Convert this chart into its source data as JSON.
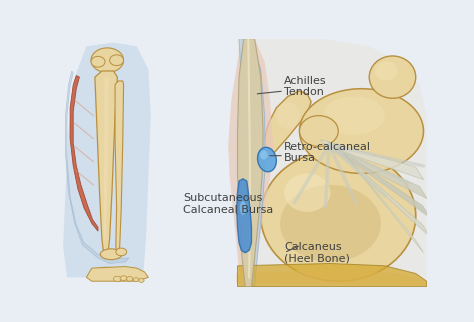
{
  "bg_color": "#e8eef4",
  "labels": {
    "achilles": "Achilles\nTendon",
    "retro": "Retro-calcaneal\nBursa",
    "subcut": "Subcutaneous\nCalcaneal Bursa",
    "calcaneus": "Calcaneus\n(Heel Bone)"
  },
  "bone_color": "#e8d5a0",
  "bone_color2": "#ddc890",
  "bone_outline": "#b89040",
  "bone_shadow": "#c8a860",
  "muscle_color": "#c86040",
  "muscle_color2": "#e07850",
  "muscle_outline": "#a04030",
  "tendon_main": "#d4c8a8",
  "tendon_sheath_pink": "#e8c0b0",
  "tendon_sheath_blue": "#b8ccd8",
  "bursa_blue_dark": "#3070b0",
  "bursa_blue_light": "#5090d0",
  "bursa_blue_bright": "#60a8e0",
  "ligament_color": "#d8ddd0",
  "label_color": "#404040",
  "label_fontsize": 8,
  "bg_left": "#ccd8e4",
  "skin_color": "#f0d8b8",
  "gold_color": "#d4a830"
}
